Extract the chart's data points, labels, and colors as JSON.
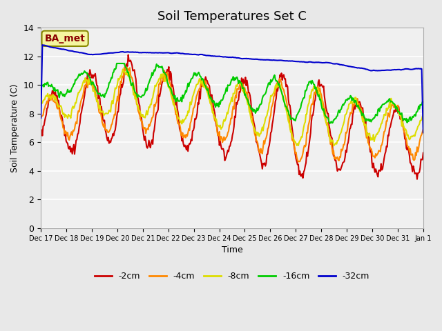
{
  "title": "Soil Temperatures Set C",
  "xlabel": "Time",
  "ylabel": "Soil Temperature (C)",
  "ylim": [
    0,
    14
  ],
  "yticks": [
    0,
    2,
    4,
    6,
    8,
    10,
    12,
    14
  ],
  "bg_color": "#e8e8e8",
  "plot_bg": "#f0f0f0",
  "legend_labels": [
    "-2cm",
    "-4cm",
    "-8cm",
    "-16cm",
    "-32cm"
  ],
  "legend_colors": [
    "#cc0000",
    "#ff8800",
    "#dddd00",
    "#00cc00",
    "#0000cc"
  ],
  "line_colors": {
    "m2": "#cc0000",
    "m4": "#ff8800",
    "m8": "#dddd00",
    "m16": "#00cc00",
    "m32": "#0000cc"
  },
  "annotation_text": "BA_met",
  "annotation_color": "#8b0000",
  "annotation_bg": "#f5f5a0",
  "annotation_border": "#888800",
  "x_tick_positions": [
    0,
    1,
    2,
    3,
    4,
    5,
    6,
    7,
    8,
    9,
    10,
    11,
    12,
    13,
    14,
    15
  ],
  "x_tick_labels": [
    "Dec 17",
    "Dec 18",
    "Dec 19",
    "Dec 20",
    "Dec 21",
    "Dec 22",
    "Dec 23",
    "Dec 24",
    "Dec 25",
    "Dec 26",
    "Dec 27",
    "Dec 28",
    "Dec 29",
    "Dec 30",
    "Dec 31",
    "Jan 1"
  ]
}
